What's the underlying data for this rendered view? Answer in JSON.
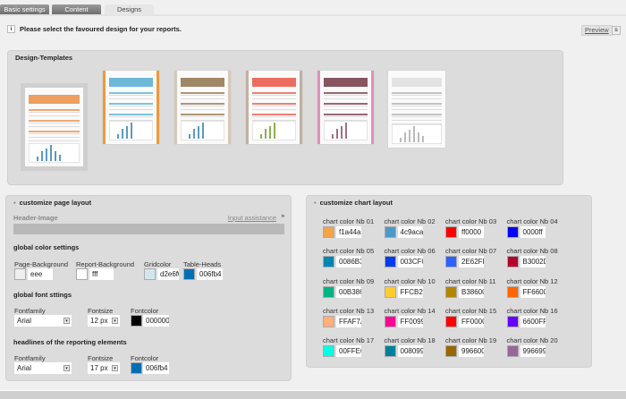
{
  "tabs": [
    {
      "label": "Basic settings",
      "active": false
    },
    {
      "label": "Content",
      "active": false
    },
    {
      "label": "Designs",
      "active": true
    }
  ],
  "info": {
    "text": "Please select the favoured design for your reports.",
    "icon": "info-icon"
  },
  "preview": {
    "label": "Preview",
    "icon": "preview-window-icon"
  },
  "templates": {
    "title": "Design-Templates",
    "selected_index": 0,
    "items": [
      {
        "accent": "#e8883a",
        "side": "none"
      },
      {
        "accent": "#4aa8d0",
        "side": "#ef9a3a"
      },
      {
        "accent": "#8a6a40",
        "side": "#d6c8b8"
      },
      {
        "accent": "#e84a3a",
        "side": "#c0b0a0"
      },
      {
        "accent": "#6a2a3a",
        "side": "#e090b8"
      },
      {
        "accent": "#aaaaaa",
        "side": "none"
      }
    ]
  },
  "page_layout": {
    "title": "customize page layout",
    "header_image": {
      "label": "Header-Image",
      "assist": "Input assistance"
    },
    "global_colors": {
      "title": "global color settings",
      "fields": [
        {
          "label": "Page-Background",
          "value": "eee",
          "color": "#eeeeee"
        },
        {
          "label": "Report-Background",
          "value": "fff",
          "color": "#ffffff"
        },
        {
          "label": "Gridcolor",
          "value": "d2e6f0",
          "color": "#d2e6f0"
        },
        {
          "label": "Table-Heads",
          "value": "006fb4",
          "color": "#006fb4"
        }
      ]
    },
    "global_font": {
      "title": "global font sttings",
      "family_label": "Fontfamily",
      "family": "Arial",
      "size_label": "Fontsize",
      "size": "12 px",
      "color_label": "Fontcolor",
      "color_value": "000000",
      "color": "#000000"
    },
    "headlines": {
      "title": "headlines of the reporting elements",
      "family_label": "Fontfamily",
      "family": "Arial",
      "size_label": "Fontsize",
      "size": "17 px",
      "color_label": "Fontcolor",
      "color_value": "006fb4",
      "color": "#006fb4"
    }
  },
  "chart_layout": {
    "title": "customize chart layout",
    "colors": [
      {
        "label": "chart color Nb 01",
        "value": "f1a44a"
      },
      {
        "label": "chart color Nb 02",
        "value": "4c9aca"
      },
      {
        "label": "chart color Nb 03",
        "value": "ff0000"
      },
      {
        "label": "chart color Nb 04",
        "value": "0000ff"
      },
      {
        "label": "chart color Nb 05",
        "value": "0086B3"
      },
      {
        "label": "chart color Nb 06",
        "value": "003CF0"
      },
      {
        "label": "chart color Nb 07",
        "value": "2E62FF"
      },
      {
        "label": "chart color Nb 08",
        "value": "B3002D"
      },
      {
        "label": "chart color Nb 09",
        "value": "00B386"
      },
      {
        "label": "chart color Nb 10",
        "value": "FFCB2E"
      },
      {
        "label": "chart color Nb 11",
        "value": "B38600"
      },
      {
        "label": "chart color Nb 12",
        "value": "FF6600"
      },
      {
        "label": "chart color Nb 13",
        "value": "FFAF7A"
      },
      {
        "label": "chart color Nb 14",
        "value": "FF0099"
      },
      {
        "label": "chart color Nb 15",
        "value": "FF0000"
      },
      {
        "label": "chart color Nb 16",
        "value": "6600FF"
      },
      {
        "label": "chart color Nb 17",
        "value": "00FFE6"
      },
      {
        "label": "chart color Nb 18",
        "value": "008099"
      },
      {
        "label": "chart color Nb 19",
        "value": "996600"
      },
      {
        "label": "chart color Nb 20",
        "value": "996699"
      }
    ]
  }
}
